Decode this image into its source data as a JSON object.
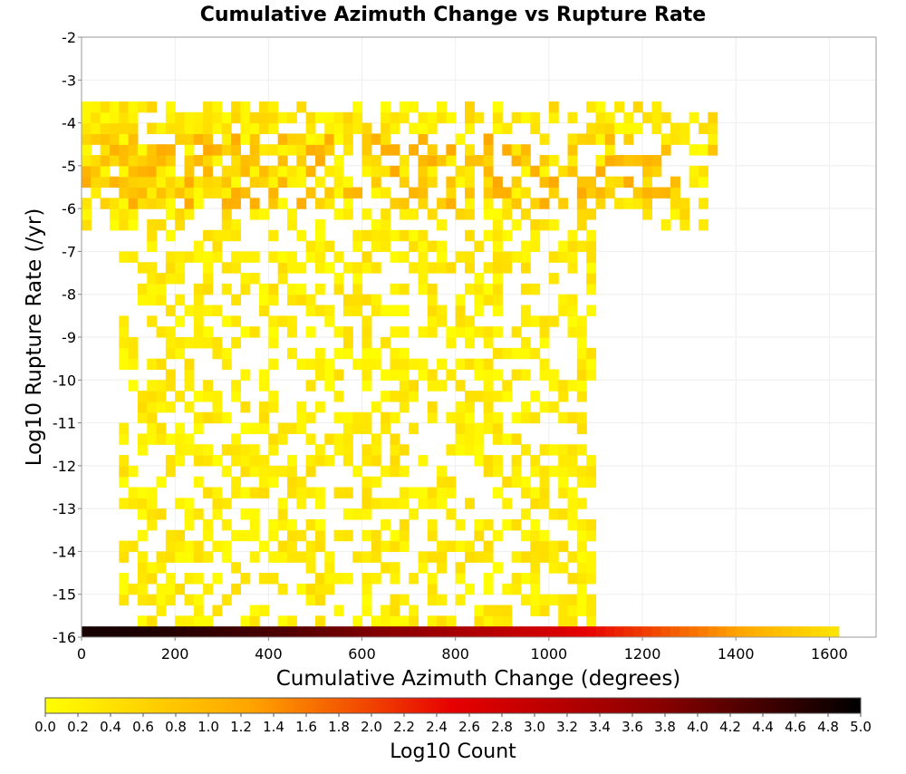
{
  "chart_data": {
    "type": "heatmap",
    "title": "Cumulative Azimuth Change vs Rupture Rate",
    "xlabel": "Cumulative Azimuth Change (degrees)",
    "ylabel": "Log10 Rupture Rate (/yr)",
    "xlim": [
      0,
      1700
    ],
    "ylim": [
      -16,
      -2
    ],
    "x_ticks": [
      "0",
      "200",
      "400",
      "600",
      "800",
      "1000",
      "1200",
      "1400",
      "1600"
    ],
    "y_ticks": [
      "-2",
      "-3",
      "-4",
      "-5",
      "-6",
      "-7",
      "-8",
      "-9",
      "-10",
      "-11",
      "-12",
      "-13",
      "-14",
      "-15",
      "-16"
    ],
    "grid": true,
    "colorbar": {
      "label": "Log10 Count",
      "range": [
        0,
        5
      ],
      "ticks": [
        "0.0",
        "0.2",
        "0.4",
        "0.6",
        "0.8",
        "1.0",
        "1.2",
        "1.4",
        "1.6",
        "1.8",
        "2.0",
        "2.2",
        "2.4",
        "2.6",
        "2.8",
        "3.0",
        "3.2",
        "3.4",
        "3.6",
        "3.8",
        "4.0",
        "4.2",
        "4.4",
        "4.6",
        "4.8",
        "5.0"
      ],
      "colors": [
        "#ffff00",
        "#ffa500",
        "#e60000",
        "#8b0000",
        "#000000"
      ]
    },
    "cell_size": {
      "x": 20,
      "y": 0.25
    },
    "regions": [
      {
        "x": [
          0,
          1360
        ],
        "y": [
          -6.5,
          -3.5
        ],
        "value_range": [
          0.0,
          1.2
        ],
        "density": 0.85,
        "note": "dense band of higher counts"
      },
      {
        "x": [
          80,
          1100
        ],
        "y": [
          -15.75,
          -6.5
        ],
        "value_range": [
          0.0,
          0.5
        ],
        "density": 0.45,
        "note": "sparse scatter of low counts"
      },
      {
        "x": [
          0,
          1620
        ],
        "y": [
          -16.0,
          -15.75
        ],
        "value_range": [
          0.3,
          4.8
        ],
        "density": 1.0,
        "note": "bottom row, high counts decreasing with x"
      }
    ]
  }
}
